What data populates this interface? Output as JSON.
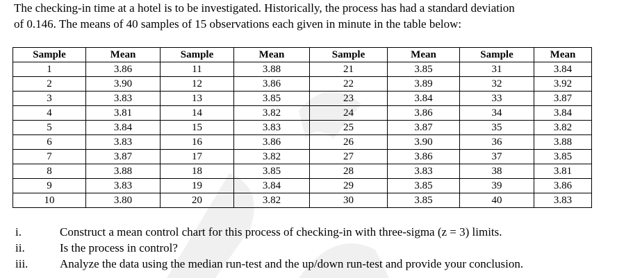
{
  "intro": {
    "lines": [
      "The checking-in time at a hotel is to be investigated. Historically, the process has had a standard deviation",
      "of 0.146. The means of 40 samples of 15 observations each given in minute in the table below:"
    ]
  },
  "table": {
    "header": [
      "Sample",
      "Mean",
      "Sample",
      "Mean",
      "Sample",
      "Mean",
      "Sample",
      "Mean"
    ],
    "rows": [
      [
        "1",
        "3.86",
        "11",
        "3.88",
        "21",
        "3.85",
        "31",
        "3.84"
      ],
      [
        "2",
        "3.90",
        "12",
        "3.86",
        "22",
        "3.89",
        "32",
        "3.92"
      ],
      [
        "3",
        "3.83",
        "13",
        "3.85",
        "23",
        "3.84",
        "33",
        "3.87"
      ],
      [
        "4",
        "3.81",
        "14",
        "3.82",
        "24",
        "3.86",
        "34",
        "3.84"
      ],
      [
        "5",
        "3.84",
        "15",
        "3.83",
        "25",
        "3.87",
        "35",
        "3.82"
      ],
      [
        "6",
        "3.83",
        "16",
        "3.86",
        "26",
        "3.90",
        "36",
        "3.88"
      ],
      [
        "7",
        "3.87",
        "17",
        "3.82",
        "27",
        "3.86",
        "37",
        "3.85"
      ],
      [
        "8",
        "3.88",
        "18",
        "3.85",
        "28",
        "3.83",
        "38",
        "3.81"
      ],
      [
        "9",
        "3.83",
        "19",
        "3.84",
        "29",
        "3.85",
        "39",
        "3.86"
      ],
      [
        "10",
        "3.80",
        "20",
        "3.82",
        "30",
        "3.85",
        "40",
        "3.83"
      ]
    ]
  },
  "questions": [
    {
      "number": "i.",
      "text": "Construct a mean control chart for this process of checking-in with three-sigma (z = 3) limits."
    },
    {
      "number": "ii.",
      "text": "Is the process in control?"
    },
    {
      "number": "iii.",
      "text": "Analyze the data using the median run-test and the up/down run-test and provide your conclusion."
    }
  ]
}
